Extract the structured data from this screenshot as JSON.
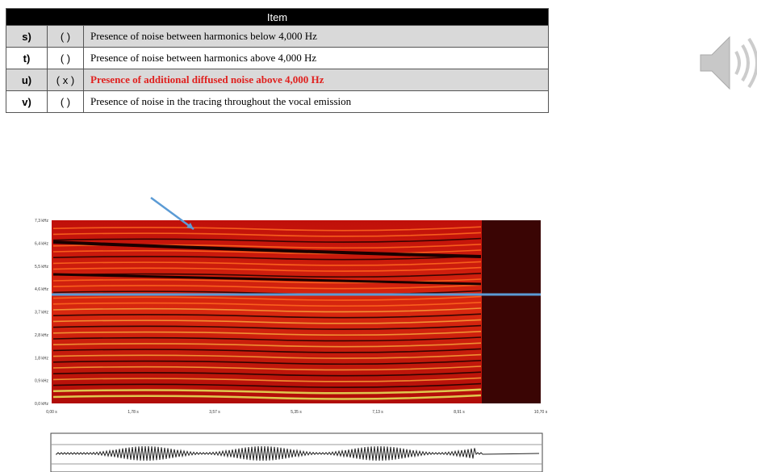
{
  "table": {
    "header": "Item",
    "rows": [
      [
        "s)",
        "(  )",
        "Presence of noise between harmonics below 4,000 Hz"
      ],
      [
        "t)",
        "(  )",
        "Presence of noise between harmonics above 4,000 Hz"
      ],
      [
        "u)",
        "( x )",
        "Presence of additional diffused noise above 4,000 Hz"
      ],
      [
        "v)",
        "(  )",
        "Presence of noise in the tracing throughout the vocal emission"
      ]
    ]
  },
  "spectrogram": {
    "y_labels": [
      "7,3 kHz",
      "6,4 kHz",
      "5,5 kHz",
      "4,6 kHz",
      "3,7 kHz",
      "2,8 kHz",
      "1,8 kHz",
      "0,9 kHz",
      "0,0 kHz"
    ],
    "x_labels": [
      "0,00 s",
      "1,78 s",
      "3,57 s",
      "5,35 s",
      "7,13 s",
      "8,91 s",
      "10,70 s"
    ]
  }
}
